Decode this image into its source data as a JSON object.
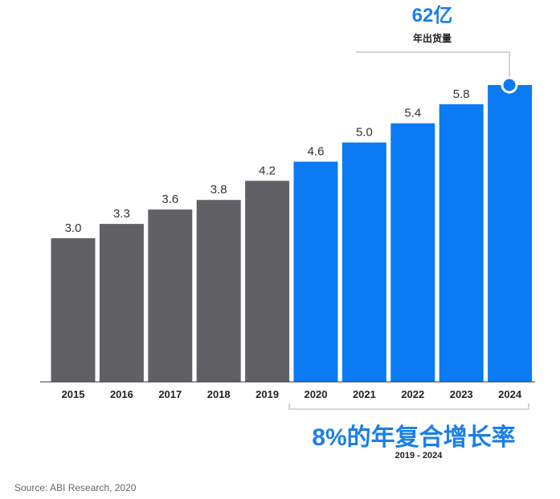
{
  "chart_data": {
    "type": "bar",
    "categories": [
      "2015",
      "2016",
      "2017",
      "2018",
      "2019",
      "2020",
      "2021",
      "2022",
      "2023",
      "2024"
    ],
    "values": [
      3.0,
      3.3,
      3.6,
      3.8,
      4.2,
      4.6,
      5.0,
      5.4,
      5.8,
      6.2
    ],
    "value_labels": [
      "3.0",
      "3.3",
      "3.6",
      "3.8",
      "4.2",
      "4.6",
      "5.0",
      "5.4",
      "5.8",
      ""
    ],
    "historical_color": "#616165",
    "forecast_color": "#0a7bf2",
    "ylim": [
      0,
      6.2
    ],
    "grid": false,
    "xlabel": "",
    "ylabel": ""
  },
  "callout": {
    "value": "62亿",
    "label": "年出货量"
  },
  "cagr": {
    "title": "8%的年复合增长率",
    "period": "2019 - 2024"
  },
  "source": "Source: ABI Research, 2020"
}
